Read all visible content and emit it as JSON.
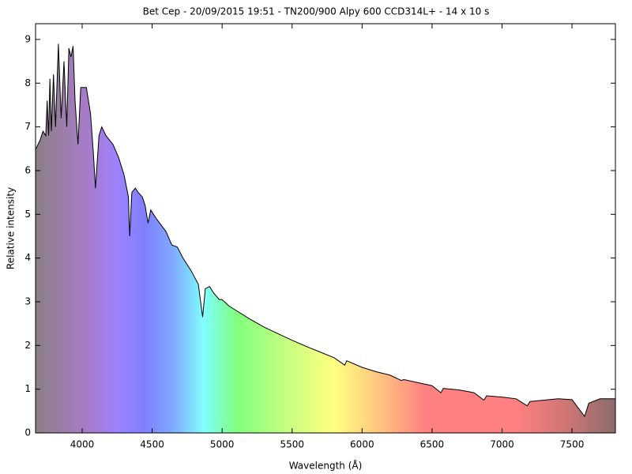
{
  "chart_data": {
    "type": "line",
    "title": "Bet Cep - 20/09/2015 19:51 - TN200/900 Alpy 600 CCD314L+ - 14 x 10 s",
    "xlabel": "Wavelength (Å)",
    "ylabel": "Relative intensity",
    "xlim": [
      3667,
      7810
    ],
    "ylim": [
      0,
      9.36
    ],
    "xticks": [
      4000,
      4500,
      5000,
      5500,
      6000,
      6500,
      7000,
      7500
    ],
    "yticks": [
      0,
      1,
      2,
      3,
      4,
      5,
      6,
      7,
      8,
      9
    ],
    "series": [
      {
        "name": "Bet Cep",
        "color": "#000000",
        "x": [
          3670,
          3700,
          3720,
          3740,
          3750,
          3760,
          3770,
          3780,
          3795,
          3810,
          3830,
          3850,
          3870,
          3890,
          3905,
          3920,
          3935,
          3949,
          3970,
          3990,
          4030,
          4060,
          4080,
          4095,
          4120,
          4140,
          4170,
          4220,
          4260,
          4300,
          4330,
          4340,
          4355,
          4380,
          4400,
          4430,
          4450,
          4471,
          4490,
          4530,
          4600,
          4640,
          4680,
          4720,
          4780,
          4830,
          4861,
          4880,
          4910,
          4940,
          4980,
          5000,
          5050,
          5100,
          5200,
          5300,
          5400,
          5500,
          5600,
          5700,
          5800,
          5876,
          5890,
          6000,
          6100,
          6200,
          6280,
          6300,
          6400,
          6500,
          6563,
          6580,
          6700,
          6800,
          6870,
          6890,
          7000,
          7100,
          7180,
          7200,
          7300,
          7400,
          7500,
          7590,
          7620,
          7700,
          7810
        ],
        "values": [
          6.5,
          6.7,
          6.9,
          6.8,
          7.6,
          6.8,
          8.1,
          6.9,
          8.2,
          7.0,
          8.9,
          7.2,
          8.5,
          7.0,
          8.8,
          8.6,
          8.85,
          7.6,
          6.6,
          7.9,
          7.9,
          7.3,
          6.4,
          5.6,
          6.8,
          7.0,
          6.8,
          6.6,
          6.3,
          5.9,
          5.4,
          4.5,
          5.5,
          5.6,
          5.5,
          5.4,
          5.2,
          4.8,
          5.1,
          4.9,
          4.6,
          4.3,
          4.25,
          4.0,
          3.7,
          3.4,
          2.65,
          3.3,
          3.35,
          3.2,
          3.05,
          3.05,
          2.9,
          2.8,
          2.6,
          2.42,
          2.27,
          2.12,
          1.98,
          1.85,
          1.72,
          1.55,
          1.65,
          1.5,
          1.4,
          1.32,
          1.2,
          1.22,
          1.15,
          1.08,
          0.92,
          1.02,
          0.98,
          0.92,
          0.75,
          0.85,
          0.82,
          0.78,
          0.62,
          0.72,
          0.75,
          0.78,
          0.76,
          0.38,
          0.68,
          0.78,
          0.78
        ]
      }
    ],
    "fill_stops": [
      {
        "x": 3667,
        "color": "#8a7e86"
      },
      {
        "x": 3850,
        "color": "#9a7ea6"
      },
      {
        "x": 4050,
        "color": "#a77ccc"
      },
      {
        "x": 4250,
        "color": "#9d82ff"
      },
      {
        "x": 4450,
        "color": "#7f80ff"
      },
      {
        "x": 4650,
        "color": "#80aaff"
      },
      {
        "x": 4870,
        "color": "#80ffff"
      },
      {
        "x": 5100,
        "color": "#80ff80"
      },
      {
        "x": 5500,
        "color": "#cdff80"
      },
      {
        "x": 5800,
        "color": "#ffff80"
      },
      {
        "x": 6150,
        "color": "#ffc080"
      },
      {
        "x": 6450,
        "color": "#ff8080"
      },
      {
        "x": 7100,
        "color": "#ff8080"
      },
      {
        "x": 7500,
        "color": "#c87474"
      },
      {
        "x": 7810,
        "color": "#8c6c6c"
      }
    ]
  }
}
